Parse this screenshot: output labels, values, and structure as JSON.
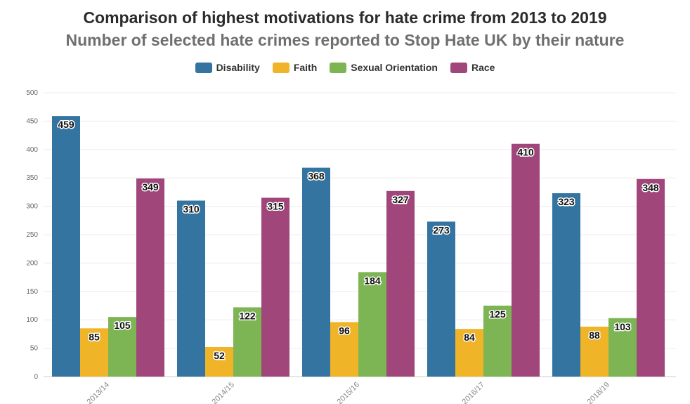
{
  "chart_data": {
    "type": "bar",
    "title": "Comparison of highest motivations for hate crime from 2013 to 2019",
    "subtitle": "Number of selected hate crimes reported to Stop Hate UK by their nature",
    "categories": [
      "2013/14",
      "2014/15",
      "2015/16",
      "2016/17",
      "2018/19"
    ],
    "series": [
      {
        "name": "Disability",
        "color": "#3474a0",
        "values": [
          459,
          310,
          368,
          273,
          323
        ]
      },
      {
        "name": "Faith",
        "color": "#f0b429",
        "values": [
          85,
          52,
          96,
          84,
          88
        ]
      },
      {
        "name": "Sexual Orientation",
        "color": "#7db554",
        "values": [
          105,
          122,
          184,
          125,
          103
        ]
      },
      {
        "name": "Race",
        "color": "#a0467a",
        "values": [
          349,
          315,
          327,
          410,
          348
        ]
      }
    ],
    "ylim": [
      0,
      500
    ],
    "yticks": [
      0,
      50,
      100,
      150,
      200,
      250,
      300,
      350,
      400,
      450,
      500
    ],
    "grid": true,
    "legend_position": "top-center",
    "xlabel": "",
    "ylabel": ""
  }
}
